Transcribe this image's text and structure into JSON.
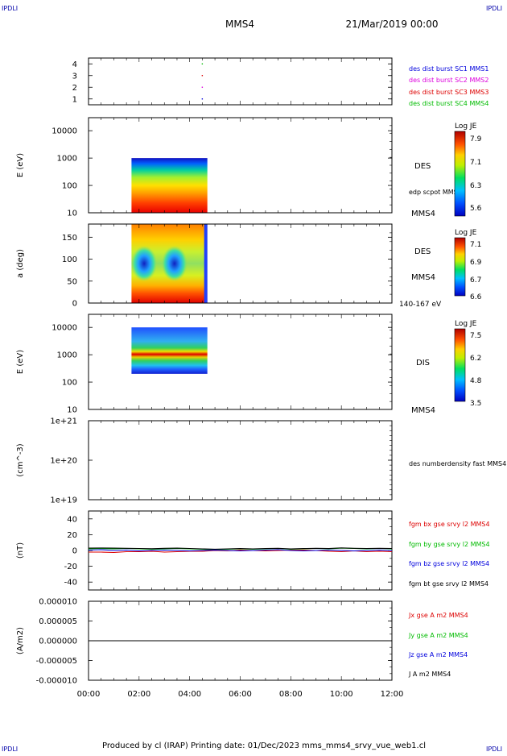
{
  "header": {
    "corner_label": "IPDLI",
    "title": "MMS4",
    "datetime": "21/Mar/2019 00:00"
  },
  "footer": {
    "text": "Produced by cl (IRAP)   Printing date: 01/Dec/2023   mms_mms4_srvy_vue_web1.cl"
  },
  "colors": {
    "blue": "#0000dd",
    "magenta": "#dd00dd",
    "red": "#dd0000",
    "green": "#00bb00",
    "black": "#000000"
  },
  "chart_data": [
    {
      "type": "scatter",
      "panel": "burst-availability",
      "ylim": [
        0.5,
        4.5
      ],
      "yticks": [
        1,
        2,
        3,
        4
      ],
      "xlim": [
        0,
        12
      ],
      "series": [
        {
          "name": "des dist burst SC1 MMS1",
          "color": "#0000dd",
          "points": [
            [
              4.5,
              1
            ]
          ]
        },
        {
          "name": "des dist burst SC2 MMS2",
          "color": "#dd00dd",
          "points": [
            [
              4.5,
              2
            ]
          ]
        },
        {
          "name": "des dist burst SC3 MMS3",
          "color": "#dd0000",
          "points": [
            [
              4.5,
              3
            ]
          ]
        },
        {
          "name": "des dist burst SC4 MMS4",
          "color": "#00bb00",
          "points": [
            [
              4.5,
              4
            ]
          ]
        }
      ]
    },
    {
      "type": "heatmap",
      "panel": "des-energy-spectrogram",
      "ylabel": "E (eV)",
      "scale": "log",
      "ylim": [
        10,
        30000
      ],
      "yticks": [
        "10",
        "100",
        "1000",
        "10000"
      ],
      "x_range": [
        1.7,
        4.7
      ],
      "y_range": [
        15,
        1000
      ],
      "side_labels": [
        "DES",
        "edp scpot MMS4",
        "MMS4"
      ],
      "colorbar": {
        "title": "Log JE",
        "min": 5.6,
        "max": 8.1,
        "ticks": [
          "7.9",
          "7.1",
          "6.3",
          "5.6"
        ]
      }
    },
    {
      "type": "heatmap",
      "panel": "des-pitch-angle",
      "ylabel": "a (deg)",
      "ylim": [
        0,
        180
      ],
      "yticks": [
        "0",
        "50",
        "100",
        "150"
      ],
      "x_range": [
        1.7,
        4.7
      ],
      "side_labels": [
        "DES",
        "MMS4",
        "140-167 eV"
      ],
      "colorbar": {
        "title": "Log JE",
        "min": 6.6,
        "max": 7.15,
        "ticks": [
          "7.1",
          "6.9",
          "6.7",
          "6.6"
        ]
      }
    },
    {
      "type": "heatmap",
      "panel": "dis-energy-spectrogram",
      "ylabel": "E (eV)",
      "scale": "log",
      "ylim": [
        10,
        30000
      ],
      "yticks": [
        "10",
        "100",
        "1000",
        "10000"
      ],
      "x_range": [
        1.7,
        4.7
      ],
      "y_range": [
        200,
        10000
      ],
      "side_labels": [
        "DIS",
        "MMS4"
      ],
      "colorbar": {
        "title": "Log JE",
        "min": 3.5,
        "max": 7.9,
        "ticks": [
          "7.5",
          "6.2",
          "4.8",
          "3.5"
        ]
      }
    },
    {
      "type": "line",
      "panel": "number-density",
      "ylabel": "(cm^-3)",
      "scale": "log",
      "ylim": [
        1e+19,
        1e+21
      ],
      "yticks": [
        "1e+19",
        "1e+20",
        "1e+21"
      ],
      "series": [
        {
          "name": "des numberdensity fast MMS4",
          "values": []
        }
      ]
    },
    {
      "type": "line",
      "panel": "magnetic-field",
      "ylabel": "(nT)",
      "ylim": [
        -50,
        50
      ],
      "yticks": [
        "-40",
        "-20",
        "0",
        "20",
        "40"
      ],
      "x": [
        0,
        0.5,
        1,
        1.5,
        2,
        2.5,
        3,
        3.5,
        4,
        4.5,
        5,
        5.5,
        6,
        6.5,
        7,
        7.5,
        8,
        8.5,
        9,
        9.5,
        10,
        10.5,
        11,
        11.5,
        12
      ],
      "series": [
        {
          "name": "fgm bx gse srvy l2 MMS4",
          "color": "#dd0000",
          "values": [
            -2,
            -2,
            -2.5,
            -1.5,
            -1.5,
            -1,
            -2,
            -1.5,
            -1,
            -1,
            0,
            -0.5,
            0.5,
            0,
            -0.5,
            0,
            0.5,
            0.5,
            0,
            -1,
            -1.5,
            -0.5,
            -1.5,
            -1,
            -1.5
          ]
        },
        {
          "name": "fgm by gse srvy l2 MMS4",
          "color": "#00bb00",
          "values": [
            2,
            2.5,
            2,
            2.5,
            2,
            1.5,
            2,
            2.5,
            2,
            1.5,
            1,
            1.5,
            2,
            1.5,
            2,
            2.5,
            1.5,
            2,
            2.5,
            2,
            3,
            2.5,
            2,
            2.5,
            2
          ]
        },
        {
          "name": "fgm bz gse srvy l2 MMS4",
          "color": "#0000dd",
          "values": [
            0.5,
            1,
            0,
            0.5,
            -0.5,
            0,
            0.5,
            0,
            -0.5,
            0,
            0.5,
            0,
            -0.5,
            0,
            0.5,
            1,
            0,
            -0.5,
            0,
            0.5,
            0,
            -0.5,
            0,
            0.5,
            0
          ]
        },
        {
          "name": "fgm bt gse srvy l2 MMS4",
          "color": "#000000",
          "values": [
            3,
            3.2,
            3,
            2.8,
            2.6,
            2.2,
            2.8,
            3,
            2.5,
            2,
            1.6,
            2,
            2.4,
            2,
            2.4,
            2.8,
            2,
            2.4,
            2.8,
            2.4,
            3.3,
            2.8,
            2.6,
            2.8,
            2.6
          ]
        }
      ]
    },
    {
      "type": "line",
      "panel": "current-density",
      "ylabel": "(A/m2)",
      "ylim": [
        -1e-05,
        1e-05
      ],
      "yticks": [
        "-0.000010",
        "-0.000005",
        "0.000000",
        "0.000005",
        "0.000010"
      ],
      "xlabel_ticks": [
        "00:00",
        "02:00",
        "04:00",
        "06:00",
        "08:00",
        "10:00",
        "12:00"
      ],
      "xlim": [
        0,
        12
      ],
      "series": [
        {
          "name": "Jx gse A m2 MMS4",
          "color": "#dd0000",
          "values": []
        },
        {
          "name": "Jy gse A m2 MMS4",
          "color": "#00bb00",
          "values": []
        },
        {
          "name": "Jz gse A m2 MMS4",
          "color": "#0000dd",
          "values": []
        },
        {
          "name": "J A m2 MMS4",
          "color": "#000000",
          "values": [
            0,
            0,
            0,
            0,
            0,
            0,
            0,
            0,
            0,
            0,
            0,
            0,
            0,
            0,
            0,
            0,
            0,
            0,
            0,
            0,
            0,
            0,
            0,
            0,
            0
          ]
        }
      ]
    }
  ]
}
